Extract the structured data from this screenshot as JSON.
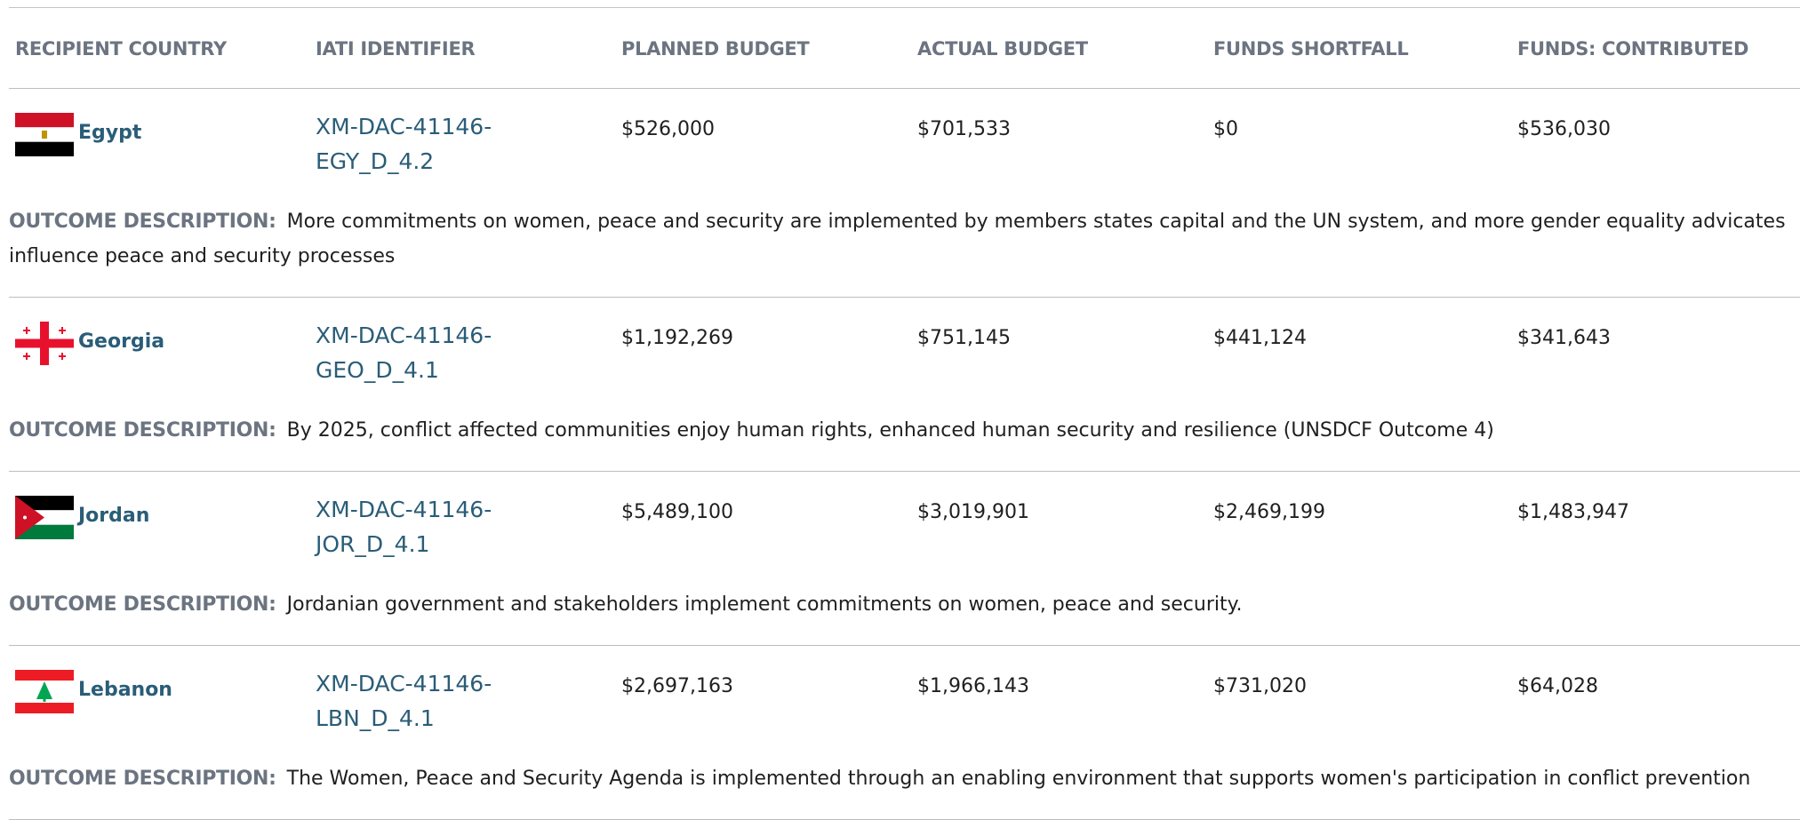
{
  "table": {
    "columns": [
      "RECIPIENT COUNTRY",
      "IATI IDENTIFIER",
      "PLANNED BUDGET",
      "ACTUAL BUDGET",
      "FUNDS SHORTFALL",
      "FUNDS: CONTRIBUTED"
    ],
    "outcome_label": "OUTCOME DESCRIPTION:",
    "rows": [
      {
        "country": "Egypt",
        "identifier": "XM-DAC-41146-EGY_D_4.2",
        "planned": "$526,000",
        "actual": "$701,533",
        "shortfall": "$0",
        "contributed": "$536,030",
        "description": "More commitments on women, peace and security are implemented by members states capital and the UN system, and more gender equality advicates influence peace and security processes"
      },
      {
        "country": "Georgia",
        "identifier": "XM-DAC-41146-GEO_D_4.1",
        "planned": "$1,192,269",
        "actual": "$751,145",
        "shortfall": "$441,124",
        "contributed": "$341,643",
        "description": "By 2025, conflict affected communities enjoy human rights, enhanced human security and resilience (UNSDCF Outcome 4)"
      },
      {
        "country": "Jordan",
        "identifier": "XM-DAC-41146-JOR_D_4.1",
        "planned": "$5,489,100",
        "actual": "$3,019,901",
        "shortfall": "$2,469,199",
        "contributed": "$1,483,947",
        "description": "Jordanian government and stakeholders implement commitments on women, peace and security."
      },
      {
        "country": "Lebanon",
        "identifier": "XM-DAC-41146-LBN_D_4.1",
        "planned": "$2,697,163",
        "actual": "$1,966,143",
        "shortfall": "$731,020",
        "contributed": "$64,028",
        "description": "The Women, Peace and Security Agenda is implemented through an enabling environment that supports women's participation in conflict prevention"
      }
    ]
  }
}
